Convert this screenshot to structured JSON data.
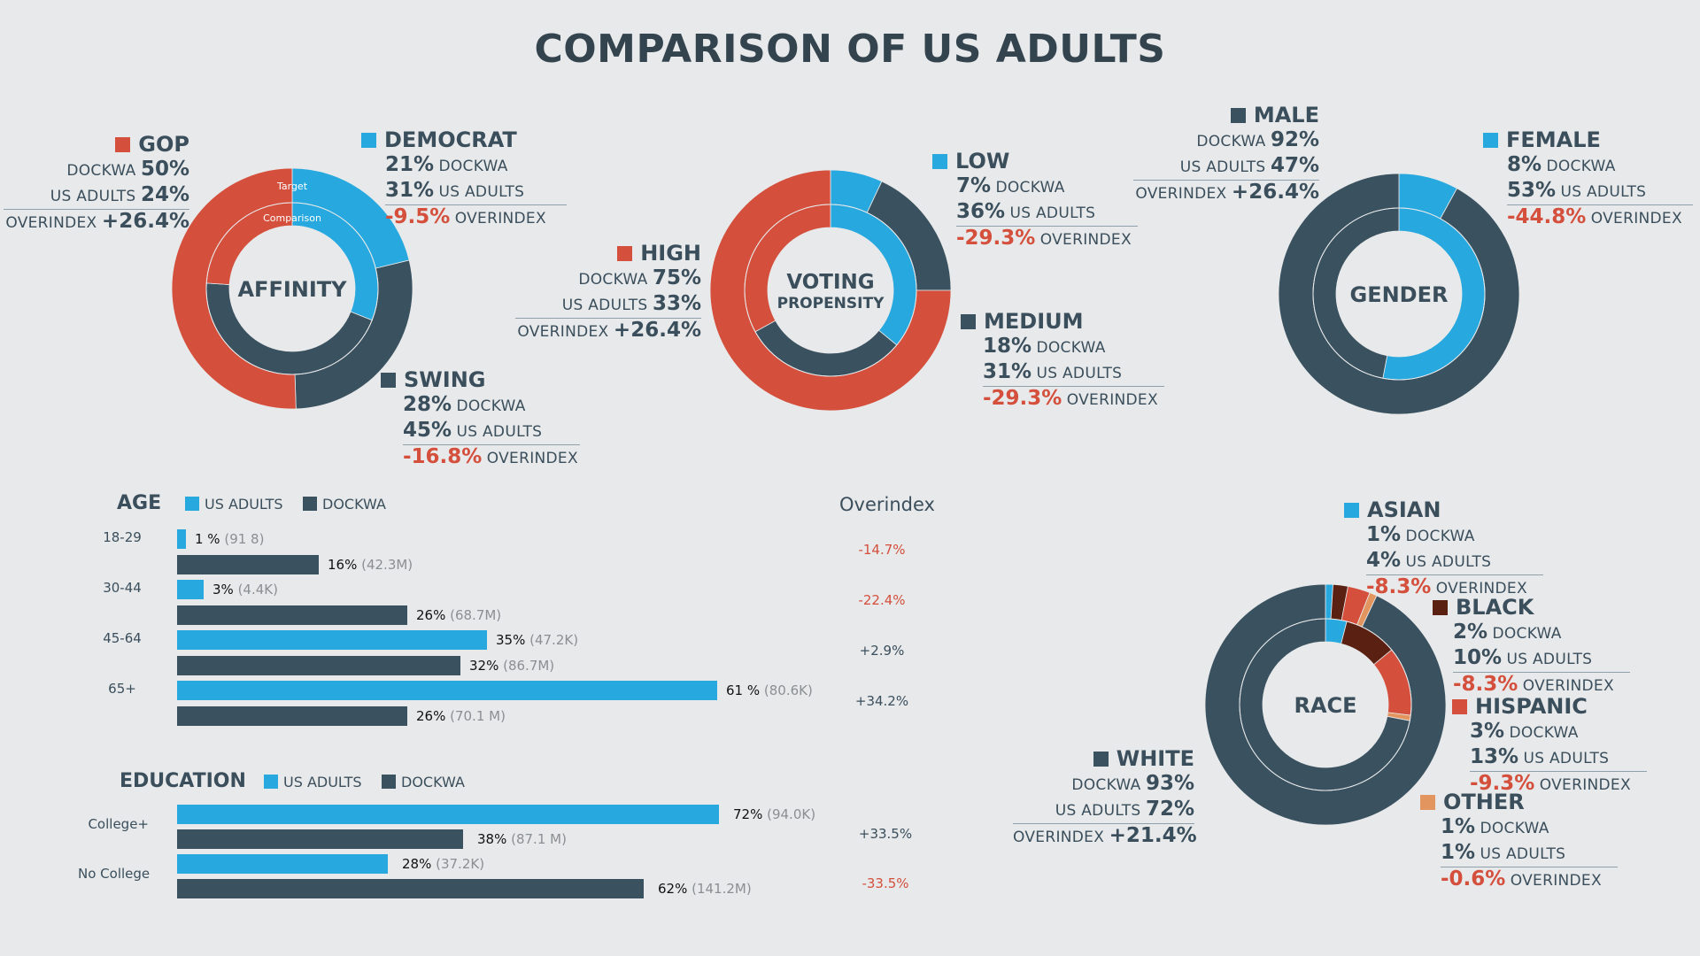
{
  "title": "COMPARISON OF US ADULTS",
  "colors": {
    "blue": "#27A9E0",
    "red": "#D44F3C",
    "slate": "#3A5260",
    "brown": "#5A2012",
    "orange": "#E3955F",
    "background": "#E8E9EA",
    "text": "#3A4E5C"
  },
  "labels": {
    "dockwa": "DOCKWA",
    "us_adults": "US ADULTS",
    "overindex": "OVERINDEX",
    "target": "Target",
    "comparison": "Comparison"
  },
  "chart_data": [
    {
      "type": "pie",
      "name": "affinity",
      "title": "AFFINITY",
      "rings": [
        "outer: DOCKWA (Target)",
        "inner: US ADULTS (Comparison)"
      ],
      "categories": [
        "DEMOCRAT",
        "SWING",
        "GOP"
      ],
      "colors": [
        "#27A9E0",
        "#3A5260",
        "#D44F3C"
      ],
      "series": [
        {
          "name": "DOCKWA",
          "values": [
            21,
            28,
            50
          ]
        },
        {
          "name": "US ADULTS",
          "values": [
            31,
            45,
            24
          ]
        }
      ],
      "overindex": [
        "-9.5%",
        "-16.8%",
        "+26.4%"
      ],
      "ring_notes": {
        "outer": "Target",
        "inner": "Comparison"
      }
    },
    {
      "type": "pie",
      "name": "voting",
      "title": "VOTING",
      "subtitle": "PROPENSITY",
      "categories": [
        "LOW",
        "MEDIUM",
        "HIGH"
      ],
      "colors": [
        "#27A9E0",
        "#3A5260",
        "#D44F3C"
      ],
      "series": [
        {
          "name": "DOCKWA",
          "values": [
            7,
            18,
            75
          ]
        },
        {
          "name": "US ADULTS",
          "values": [
            36,
            31,
            33
          ]
        }
      ],
      "overindex": [
        "-29.3%",
        "-29.3%",
        "+26.4%"
      ]
    },
    {
      "type": "pie",
      "name": "gender",
      "title": "GENDER",
      "categories": [
        "FEMALE",
        "MALE"
      ],
      "colors": [
        "#27A9E0",
        "#3A5260"
      ],
      "series": [
        {
          "name": "DOCKWA",
          "values": [
            8,
            92
          ]
        },
        {
          "name": "US ADULTS",
          "values": [
            53,
            47
          ]
        }
      ],
      "overindex": [
        "-44.8%",
        "+26.4%"
      ]
    },
    {
      "type": "pie",
      "name": "race",
      "title": "RACE",
      "categories": [
        "ASIAN",
        "BLACK",
        "HISPANIC",
        "OTHER",
        "WHITE"
      ],
      "colors": [
        "#27A9E0",
        "#5A2012",
        "#D44F3C",
        "#E3955F",
        "#3A5260"
      ],
      "series": [
        {
          "name": "DOCKWA",
          "values": [
            1,
            2,
            3,
            1,
            93
          ]
        },
        {
          "name": "US ADULTS",
          "values": [
            4,
            10,
            13,
            1,
            72
          ]
        }
      ],
      "overindex": [
        "-8.3%",
        "-8.3%",
        "-9.3%",
        "-0.6%",
        "+21.4%"
      ]
    },
    {
      "type": "bar",
      "name": "age",
      "title": "AGE",
      "legend": [
        "US ADULTS",
        "DOCKWA"
      ],
      "overindex_header": "Overindex",
      "categories": [
        "18-29",
        "30-44",
        "45-64",
        "65+"
      ],
      "series": [
        {
          "name": "US ADULTS",
          "values": [
            1,
            3,
            35,
            61
          ],
          "labels": [
            "1 %",
            "3%",
            "35%",
            "61 %"
          ],
          "counts": [
            "(91 8)",
            "(4.4K)",
            "(47.2K)",
            "(80.6K)"
          ]
        },
        {
          "name": "DOCKWA",
          "values": [
            16,
            26,
            32,
            26
          ],
          "labels": [
            "16%",
            "26%",
            "32%",
            "26%"
          ],
          "counts": [
            "(42.3M)",
            "(68.7M)",
            "(86.7M)",
            "(70.1 M)"
          ]
        }
      ],
      "overindex": [
        "-14.7%",
        "-22.4%",
        "+2.9%",
        "+34.2%"
      ]
    },
    {
      "type": "bar",
      "name": "education",
      "title": "EDUCATION",
      "legend": [
        "US ADULTS",
        "DOCKWA"
      ],
      "categories": [
        "College+",
        "No College"
      ],
      "series": [
        {
          "name": "US ADULTS",
          "values": [
            72,
            28
          ],
          "labels": [
            "72%",
            "28%"
          ],
          "counts": [
            "(94.0K)",
            "(37.2K)"
          ]
        },
        {
          "name": "DOCKWA",
          "values": [
            38,
            62
          ],
          "labels": [
            "38%",
            "62%"
          ],
          "counts": [
            "(87.1 M)",
            "(141.2M)"
          ]
        }
      ],
      "overindex": [
        "+33.5%",
        "-33.5%"
      ]
    }
  ]
}
